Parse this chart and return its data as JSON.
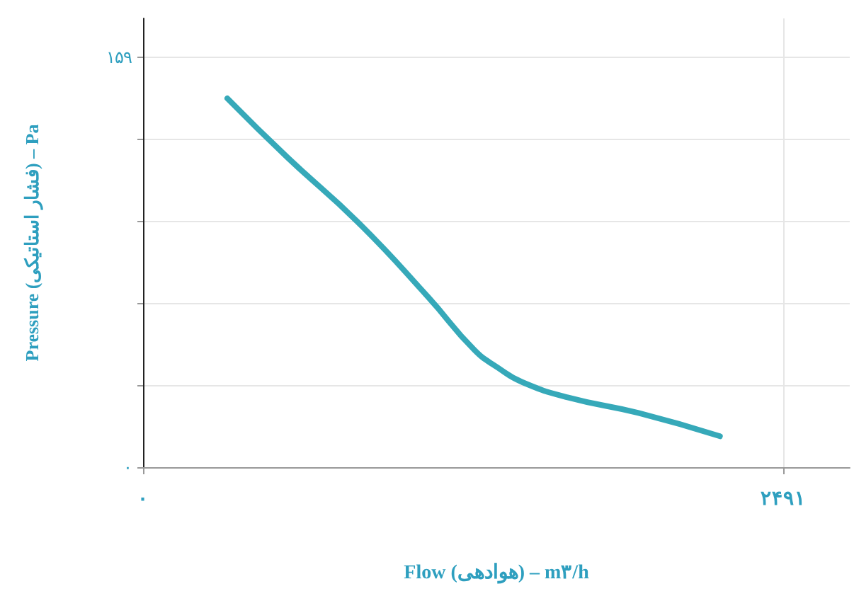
{
  "chart_data": {
    "type": "line",
    "xlabel": "Flow (هوادهی) – m۳/h",
    "ylabel": "Pressure (فشار استاتیکی) – Pa",
    "x": [
      328,
      563,
      836,
      1109,
      1289,
      1382,
      1475,
      1655,
      1928,
      2245
    ],
    "series": [
      {
        "color": "#36a9b9",
        "values": [
          143,
          120,
          95,
          66,
          45.5,
          38.5,
          33,
          27,
          21,
          12
        ]
      }
    ],
    "xlim": [
      0,
      2750
    ],
    "ylim": [
      0,
      174
    ],
    "xticks": [
      {
        "value": 0,
        "label": "۰"
      },
      {
        "value": 2491,
        "label": "۲۴۹۱"
      }
    ],
    "yticks": [
      {
        "value": 0,
        "label": "۰"
      },
      {
        "value": 31.8,
        "label": null
      },
      {
        "value": 63.6,
        "label": null
      },
      {
        "value": 95.4,
        "label": null
      },
      {
        "value": 127.2,
        "label": null
      },
      {
        "value": 159,
        "label": "۱۵۹"
      }
    ],
    "grid": true,
    "marker": "none",
    "line_style": "solid"
  }
}
